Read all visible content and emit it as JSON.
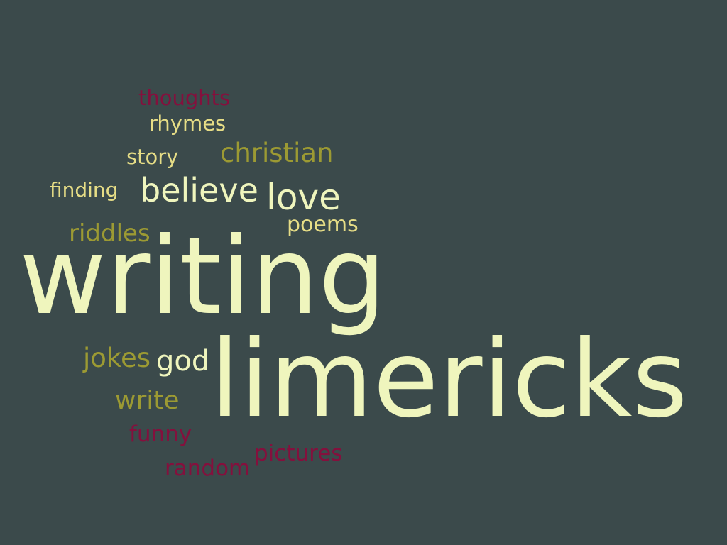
{
  "colors": {
    "background": "#3b4a4b",
    "cream": "#eff5bd",
    "yellow": "#e6dd86",
    "olive": "#9c9a33",
    "maroon": "#84103d"
  },
  "words": {
    "thoughts": "thoughts",
    "rhymes": "rhymes",
    "story": "story",
    "christian": "christian",
    "finding": "finding",
    "believe": "believe",
    "love": "love",
    "riddles": "riddles",
    "poems": "poems",
    "writing": "writing",
    "jokes": "jokes",
    "god": "god",
    "limericks": "limericks",
    "write": "write",
    "funny": "funny",
    "pictures": "pictures",
    "random": "random"
  }
}
